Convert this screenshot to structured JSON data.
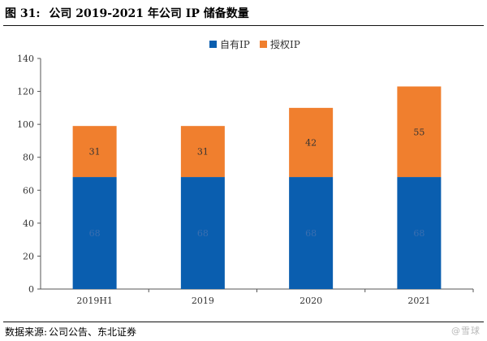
{
  "figure": {
    "label": "图 31:",
    "title": "公司 2019-2021 年公司 IP 储备数量"
  },
  "chart_data": {
    "type": "bar",
    "stacked": true,
    "categories": [
      "2019H1",
      "2019",
      "2020",
      "2021"
    ],
    "series": [
      {
        "name": "自有IP",
        "values": [
          68,
          68,
          68,
          68
        ],
        "color": "#0a5eaf"
      },
      {
        "name": "授权IP",
        "values": [
          31,
          31,
          42,
          55
        ],
        "color": "#f07f2e"
      }
    ],
    "ylim": [
      0,
      140
    ],
    "yticks": [
      0,
      20,
      40,
      60,
      80,
      100,
      120,
      140
    ],
    "grid": false,
    "legend_position": "top-center"
  },
  "source": {
    "label": "数据来源:",
    "text": "公司公告、东北证券"
  },
  "watermark": "@雪球"
}
